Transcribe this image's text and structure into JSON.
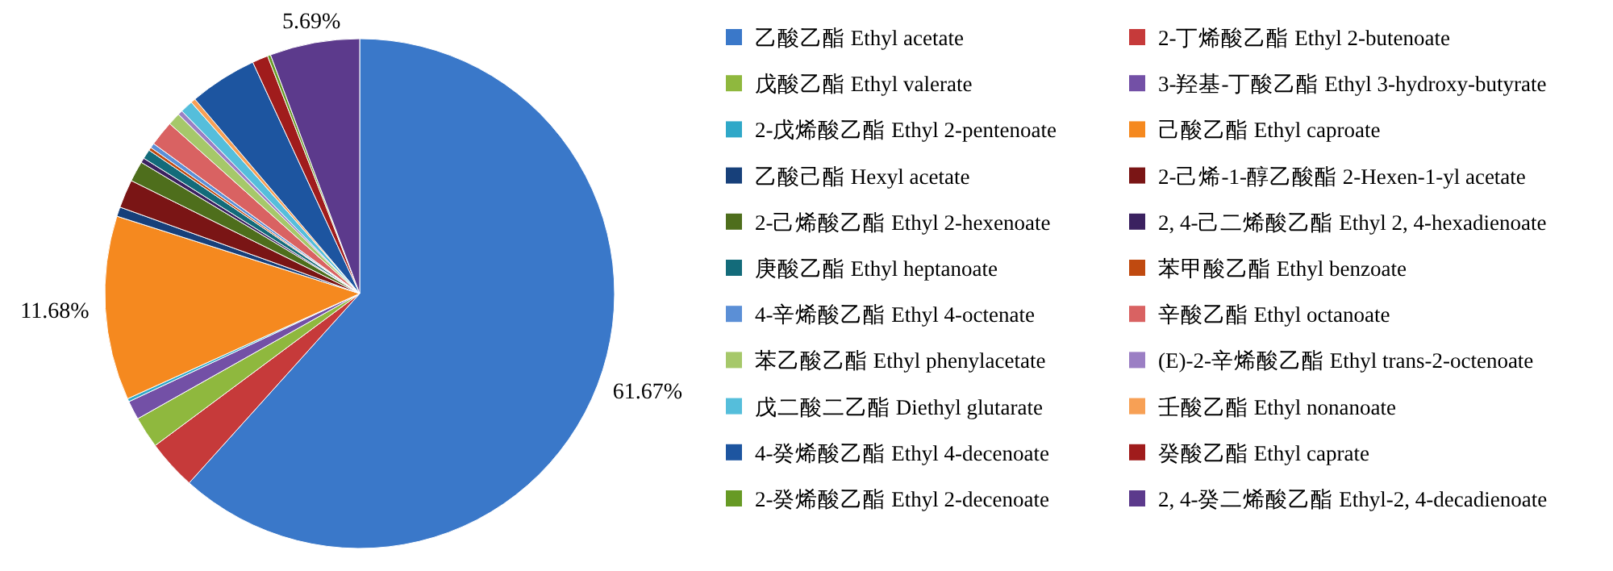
{
  "chart_data": {
    "type": "pie",
    "categories": [
      "乙酸乙酯 Ethyl acetate",
      "2-丁烯酸乙酯 Ethyl 2-butenoate",
      "戊酸乙酯 Ethyl valerate",
      "3-羟基-丁酸乙酯 Ethyl 3-hydroxy-butyrate",
      "2-戊烯酸乙酯 Ethyl 2-pentenoate",
      "己酸乙酯 Ethyl caproate",
      "乙酸己酯 Hexyl acetate",
      "2-己烯-1-醇乙酸酯 2-Hexen-1-yl acetate",
      "2-己烯酸乙酯 Ethyl 2-hexenoate",
      "2, 4-己二烯酸乙酯 Ethyl 2, 4-hexadienoate",
      "庚酸乙酯 Ethyl heptanoate",
      "苯甲酸乙酯 Ethyl benzoate",
      "4-辛烯酸乙酯 Ethyl 4-octenate",
      "辛酸乙酯 Ethyl octanoate",
      "苯乙酸乙酯 Ethyl phenylacetate",
      "(E)-2-辛烯酸乙酯 Ethyl trans-2-octenoate",
      "戊二酸二乙酯 Diethyl glutarate",
      "壬酸乙酯 Ethyl nonanoate",
      "4-癸烯酸乙酯 Ethyl 4-decenoate",
      "癸酸乙酯 Ethyl caprate",
      "2-癸烯酸乙酯 Ethyl 2-decenoate",
      "2, 4-癸二烯酸乙酯 Ethyl-2, 4-decadienoate"
    ],
    "values": [
      61.67,
      3.16,
      2.0,
      1.2,
      0.2,
      11.68,
      0.6,
      1.8,
      1.3,
      0.3,
      0.6,
      0.2,
      0.3,
      1.6,
      0.8,
      0.3,
      0.8,
      0.3,
      4.3,
      1.0,
      0.2,
      5.69
    ],
    "value_labels": [
      "61.67%",
      null,
      null,
      null,
      null,
      "11.68%",
      null,
      null,
      null,
      null,
      null,
      null,
      null,
      null,
      null,
      null,
      null,
      null,
      null,
      null,
      null,
      "5.69%"
    ],
    "colors": [
      "#3a78c9",
      "#c63a3a",
      "#8fb83e",
      "#7350a6",
      "#2fa8c8",
      "#f5891f",
      "#17407a",
      "#7a1515",
      "#4e6e1c",
      "#3b2160",
      "#136b7a",
      "#c04a10",
      "#5b8fd6",
      "#d96262",
      "#a6c86a",
      "#9b7fc4",
      "#55bedb",
      "#f7a055",
      "#1d55a0",
      "#a01c1c",
      "#679a25",
      "#5c3a8c"
    ],
    "legend": "right"
  }
}
